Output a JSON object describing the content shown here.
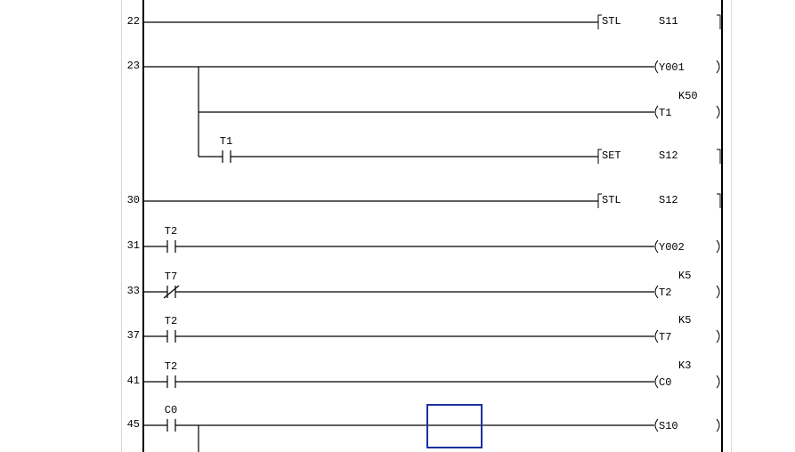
{
  "editor": {
    "rails_color": "#000000",
    "border_color": "#d8d8d8",
    "cursor_color": "#1c2fa0"
  },
  "rungs": [
    {
      "step": "22",
      "contact": null,
      "output": {
        "kind": "instruction",
        "op": "STL",
        "operand": "S11"
      }
    },
    {
      "step": "23",
      "contact": null,
      "output": {
        "kind": "coil",
        "device": "Y001"
      },
      "branches": [
        {
          "contact": null,
          "output": {
            "kind": "coil",
            "device": "T1",
            "setting": "K50"
          }
        },
        {
          "contact": {
            "device": "T1",
            "type": "NO"
          },
          "output": {
            "kind": "instruction",
            "op": "SET",
            "operand": "S12"
          }
        }
      ]
    },
    {
      "step": "30",
      "contact": null,
      "output": {
        "kind": "instruction",
        "op": "STL",
        "operand": "S12"
      }
    },
    {
      "step": "31",
      "contact": {
        "device": "T2",
        "type": "NO"
      },
      "output": {
        "kind": "coil",
        "device": "Y002"
      }
    },
    {
      "step": "33",
      "contact": {
        "device": "T7",
        "type": "NC"
      },
      "output": {
        "kind": "coil",
        "device": "T2",
        "setting": "K5"
      }
    },
    {
      "step": "37",
      "contact": {
        "device": "T2",
        "type": "NO"
      },
      "output": {
        "kind": "coil",
        "device": "T7",
        "setting": "K5"
      }
    },
    {
      "step": "41",
      "contact": {
        "device": "T2",
        "type": "NO"
      },
      "output": {
        "kind": "coil",
        "device": "C0",
        "setting": "K3"
      }
    },
    {
      "step": "45",
      "contact": {
        "device": "C0",
        "type": "NO"
      },
      "output": {
        "kind": "coil",
        "device": "S10"
      },
      "continues_branch": true
    }
  ]
}
